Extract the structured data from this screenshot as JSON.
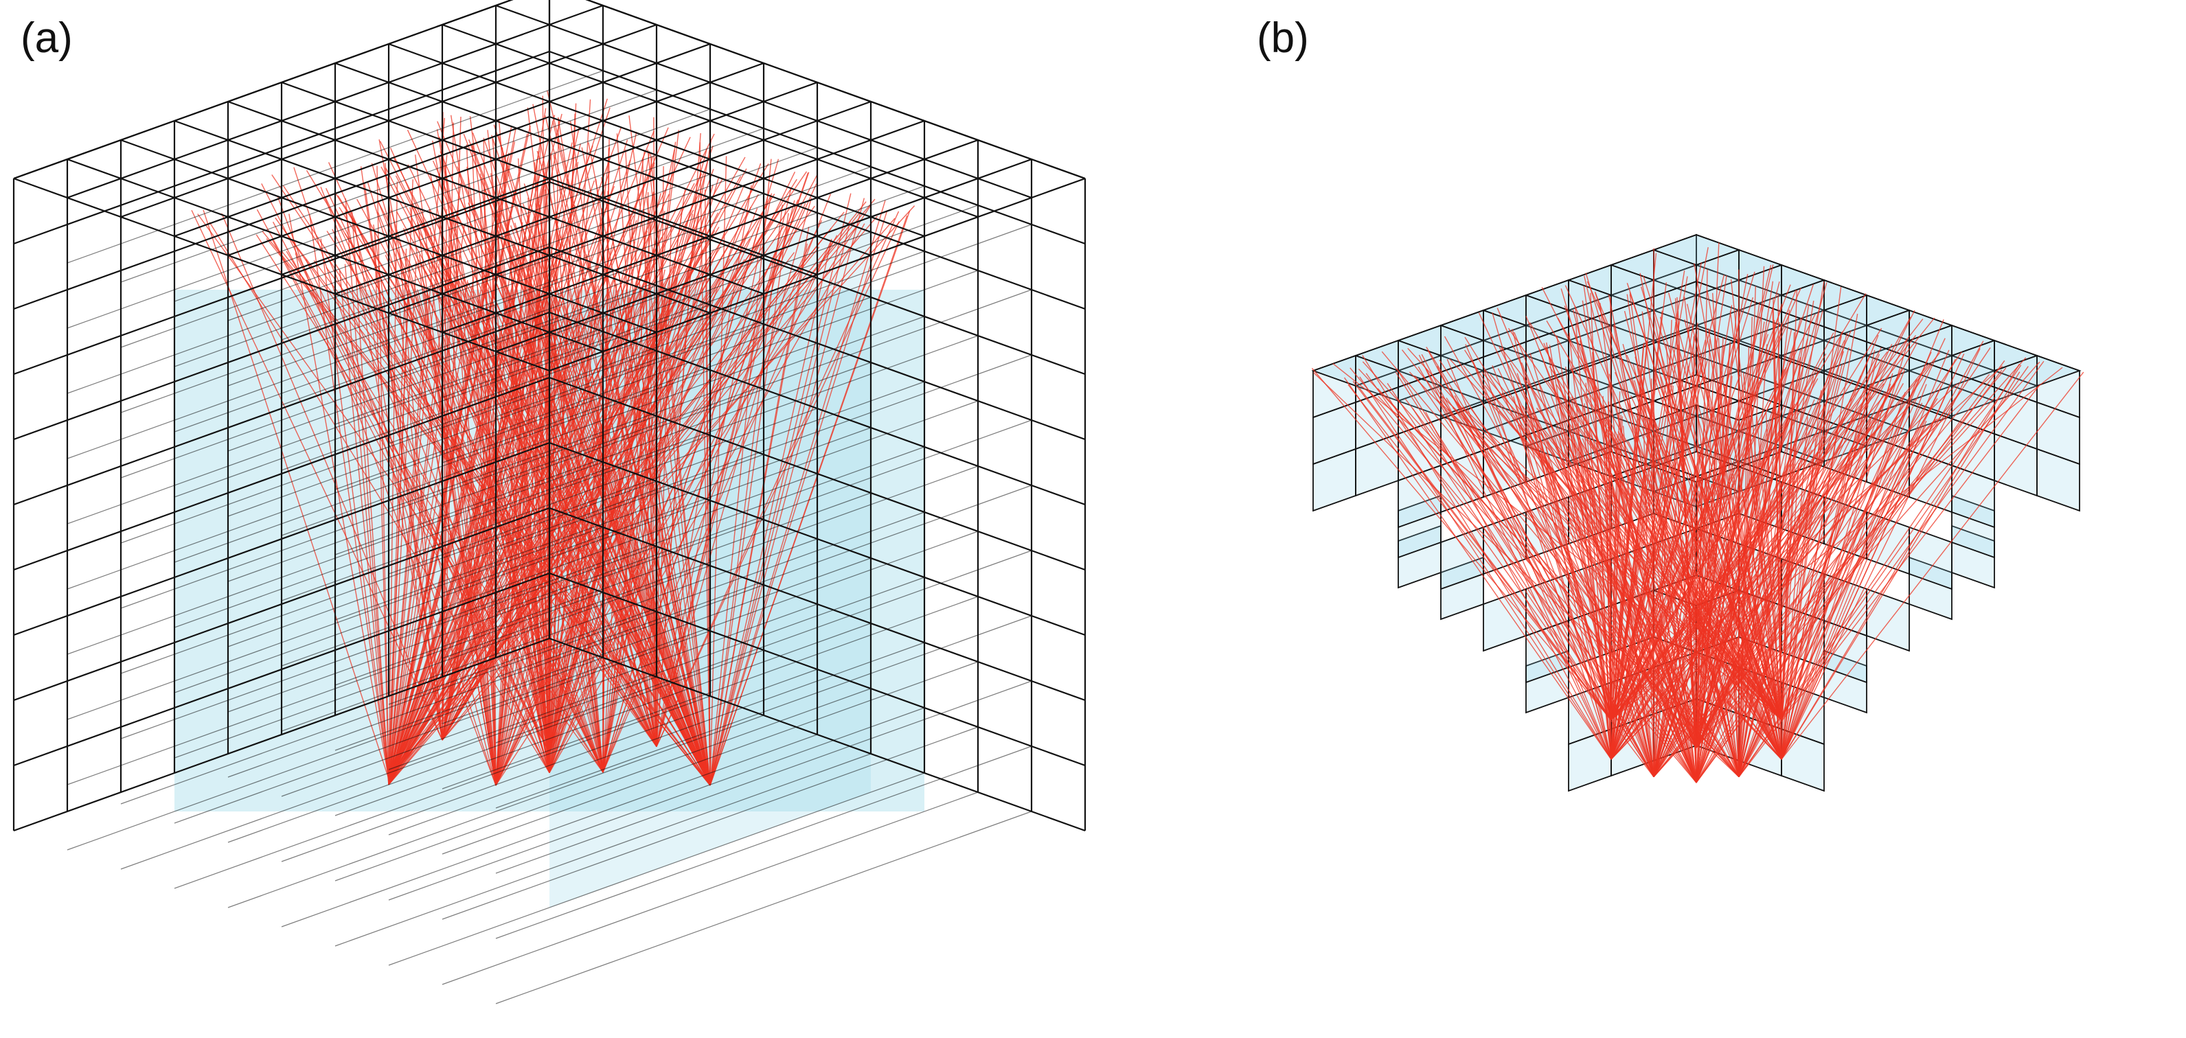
{
  "panels": [
    {
      "label": "(a)"
    },
    {
      "label": "(b)"
    }
  ],
  "colors": {
    "grid_line": "#111111",
    "cell_fill": "#8fd3e6",
    "ray": "#ee3322",
    "background": "#ffffff"
  }
}
